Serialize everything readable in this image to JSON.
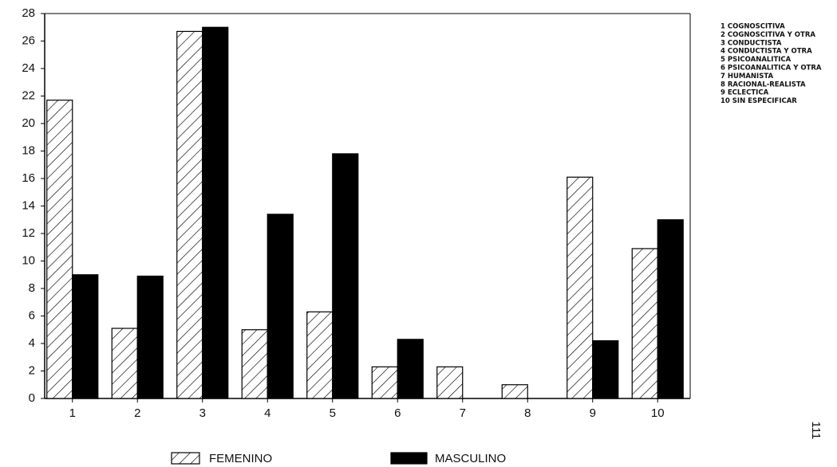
{
  "chart_data": {
    "type": "bar",
    "categories": [
      "1",
      "2",
      "3",
      "4",
      "5",
      "6",
      "7",
      "8",
      "9",
      "10"
    ],
    "series": [
      {
        "name": "FEMENINO",
        "color": "#ffffff",
        "pattern": "diagonal-hatch",
        "values": [
          21.7,
          5.1,
          26.7,
          5,
          6.3,
          2.3,
          2.3,
          1,
          16.1,
          10.9
        ]
      },
      {
        "name": "MASCULINO",
        "color": "#000000",
        "values": [
          9,
          8.9,
          27,
          13.4,
          17.8,
          4.3,
          0,
          0,
          4.2,
          13
        ]
      }
    ],
    "ylim": [
      0,
      28
    ],
    "yticks": [
      0,
      2,
      4,
      6,
      8,
      10,
      12,
      14,
      16,
      18,
      20,
      22,
      24,
      26,
      28
    ],
    "annotations": [
      "1 COGNOSCITIVA",
      "2 COGNOSCITIVA Y OTRA",
      "3 CONDUCTISTA",
      "4 CONDUCTISTA Y OTRA",
      "5 PSICOANALITICA",
      "6 PSICOANALITICA Y OTRA",
      "7 HUMANISTA",
      "8 RACIONAL-REALISTA",
      "9 ECLECTICA",
      "10 SIN ESPECIFICAR"
    ],
    "page_number": "111"
  }
}
